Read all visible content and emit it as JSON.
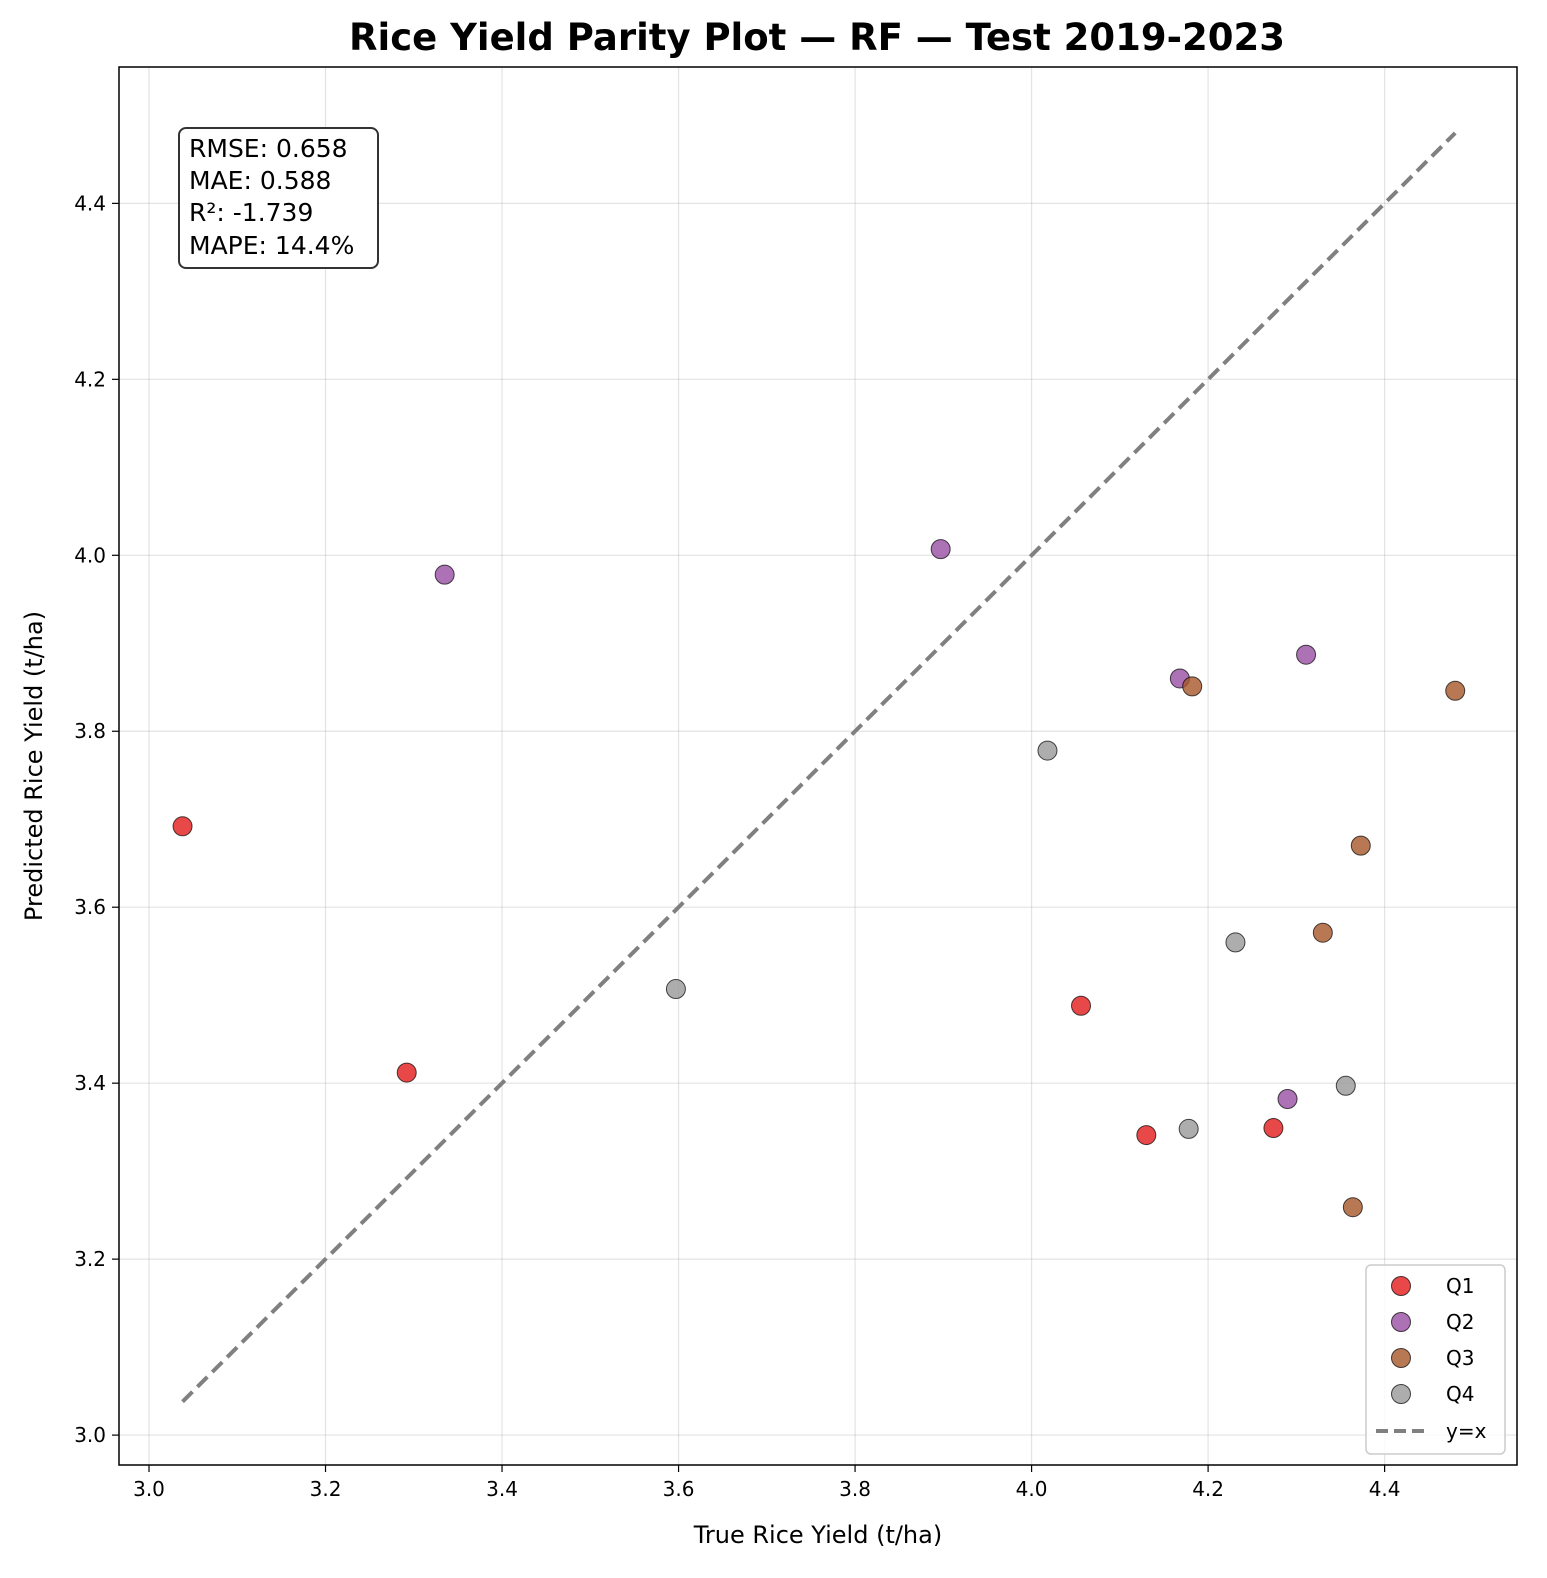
{
  "chart_data": {
    "type": "scatter",
    "title": "Rice Yield Parity Plot — RF — Test 2019-2023",
    "xlabel": "True Rice Yield (t/ha)",
    "ylabel": "Predicted Rice Yield (t/ha)",
    "xlim": [
      2.966,
      4.55
    ],
    "ylim": [
      2.966,
      4.555
    ],
    "xticks": [
      3.0,
      3.2,
      3.4,
      3.6,
      3.8,
      4.0,
      4.2,
      4.4
    ],
    "yticks": [
      3.0,
      3.2,
      3.4,
      3.6,
      3.8,
      4.0,
      4.2,
      4.4
    ],
    "grid": true,
    "legend_position": "bottom-right",
    "stats": [
      "RMSE: 0.658",
      "MAE: 0.588",
      "R²: -1.739",
      "MAPE: 14.4%"
    ],
    "series": [
      {
        "name": "Q1",
        "color": "#e41a1c",
        "points": [
          [
            3.038,
            3.692
          ],
          [
            3.292,
            3.412
          ],
          [
            4.056,
            3.488
          ],
          [
            4.13,
            3.341
          ],
          [
            4.274,
            3.349
          ]
        ]
      },
      {
        "name": "Q2",
        "color": "#984ea3",
        "points": [
          [
            3.335,
            3.978
          ],
          [
            3.897,
            4.007
          ],
          [
            4.168,
            3.86
          ],
          [
            4.311,
            3.887
          ],
          [
            4.29,
            3.382
          ]
        ]
      },
      {
        "name": "Q3",
        "color": "#a65628",
        "points": [
          [
            4.182,
            3.851
          ],
          [
            4.48,
            3.846
          ],
          [
            4.373,
            3.67
          ],
          [
            4.33,
            3.571
          ],
          [
            4.364,
            3.259
          ]
        ]
      },
      {
        "name": "Q4",
        "color": "#999999",
        "points": [
          [
            4.018,
            3.778
          ],
          [
            3.597,
            3.507
          ],
          [
            4.231,
            3.56
          ],
          [
            4.356,
            3.397
          ],
          [
            4.178,
            3.348
          ]
        ]
      }
    ],
    "reference_line": {
      "name": "y=x",
      "color": "#808080",
      "from": [
        3.038,
        3.038
      ],
      "to": [
        4.48,
        4.48
      ]
    }
  }
}
